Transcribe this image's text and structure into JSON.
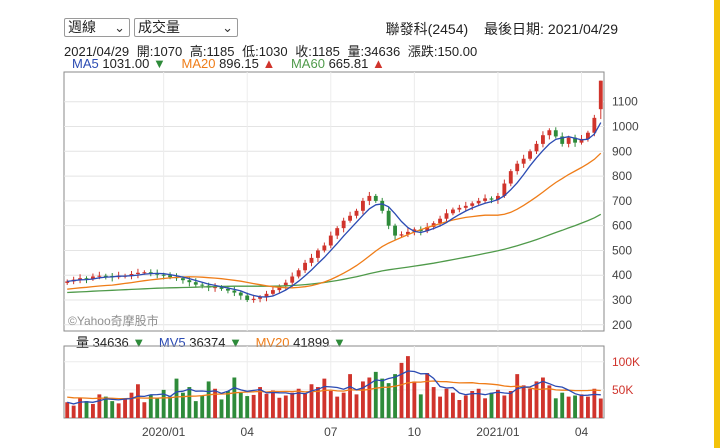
{
  "controls": {
    "period": "週線",
    "indicator": "成交量"
  },
  "header": {
    "stock": "聯發科(2454)",
    "last_date_label": "最後日期:",
    "last_date": "2021/04/29"
  },
  "quote": {
    "date": "2021/04/29",
    "open": "開:1070",
    "high": "高:1185",
    "low": "低:1030",
    "close": "收:1185",
    "volume": "量:34636",
    "change": "漲跌:150.00"
  },
  "ma": {
    "ma5": {
      "label": "MA5",
      "value": "1031.00",
      "arrow": "▼",
      "color": "#2b4bb3"
    },
    "ma20": {
      "label": "MA20",
      "value": "896.15",
      "arrow": "▲",
      "color": "#ef7d19"
    },
    "ma60": {
      "label": "MA60",
      "value": "665.81",
      "arrow": "▲",
      "color": "#4f9a4a"
    }
  },
  "volume_legend": {
    "vol": {
      "label": "量",
      "value": "34636",
      "arrow": "▼"
    },
    "mv5": {
      "label": "MV5",
      "value": "36374",
      "arrow": "▼",
      "color": "#2b4bb3"
    },
    "mv20": {
      "label": "MV20",
      "value": "41899",
      "arrow": "▼",
      "color": "#ef7d19"
    }
  },
  "watermark": "©Yahoo奇摩股市",
  "colors": {
    "up": "#d0342c",
    "down": "#2e8b3a",
    "ma5": "#2b4bb3",
    "ma20": "#ef7d19",
    "ma60": "#4f9a4a",
    "accent_rail": "#f3c20a"
  },
  "chart_data": [
    {
      "type": "candlestick",
      "title": "",
      "y_ticks": [
        200,
        300,
        400,
        500,
        600,
        700,
        800,
        900,
        1000,
        1100
      ],
      "ylim": [
        175,
        1220
      ],
      "x_tick_labels": [
        "2020/01",
        "04",
        "07",
        "10",
        "2021/01",
        "04"
      ],
      "x_tick_week_index": [
        15,
        28,
        41,
        54,
        67,
        80
      ],
      "weeks": 84,
      "close": [
        375,
        382,
        388,
        385,
        395,
        398,
        397,
        392,
        398,
        398,
        405,
        410,
        412,
        407,
        402,
        400,
        392,
        388,
        380,
        372,
        362,
        358,
        350,
        352,
        345,
        338,
        330,
        318,
        300,
        305,
        312,
        325,
        340,
        355,
        370,
        395,
        420,
        450,
        470,
        500,
        520,
        560,
        590,
        620,
        640,
        660,
        700,
        720,
        700,
        660,
        600,
        560,
        565,
        575,
        585,
        578,
        595,
        610,
        628,
        650,
        665,
        672,
        680,
        690,
        700,
        710,
        705,
        720,
        770,
        820,
        850,
        870,
        900,
        930,
        965,
        985,
        960,
        930,
        955,
        935,
        950,
        975,
        1035,
        1185
      ],
      "ma5_last": 1031.0,
      "ma20_last": 896.15,
      "ma60_last": 665.81
    },
    {
      "type": "bar",
      "title": "",
      "y_ticks": [
        50000,
        100000
      ],
      "y_tick_labels": [
        "50K",
        "100K"
      ],
      "ylim": [
        0,
        128000
      ],
      "volume": [
        28000,
        22000,
        35000,
        30000,
        25000,
        42000,
        38000,
        30000,
        26000,
        33000,
        45000,
        60000,
        28000,
        40000,
        35000,
        50000,
        38000,
        70000,
        45000,
        55000,
        30000,
        40000,
        65000,
        52000,
        33000,
        48000,
        72000,
        45000,
        39000,
        41000,
        55000,
        43000,
        49000,
        36000,
        40000,
        45000,
        52000,
        43000,
        60000,
        55000,
        70000,
        48000,
        38000,
        45000,
        78000,
        42000,
        65000,
        72000,
        82000,
        70000,
        62000,
        78000,
        98000,
        110000,
        65000,
        42000,
        80000,
        55000,
        38000,
        52000,
        45000,
        32000,
        40000,
        48000,
        52000,
        35000,
        45000,
        50000,
        40000,
        48000,
        78000,
        58000,
        52000,
        65000,
        72000,
        58000,
        35000,
        45000,
        38000,
        40000,
        42000,
        38000,
        52000,
        34636
      ],
      "mv5_last": 36374,
      "mv20_last": 41899
    }
  ]
}
